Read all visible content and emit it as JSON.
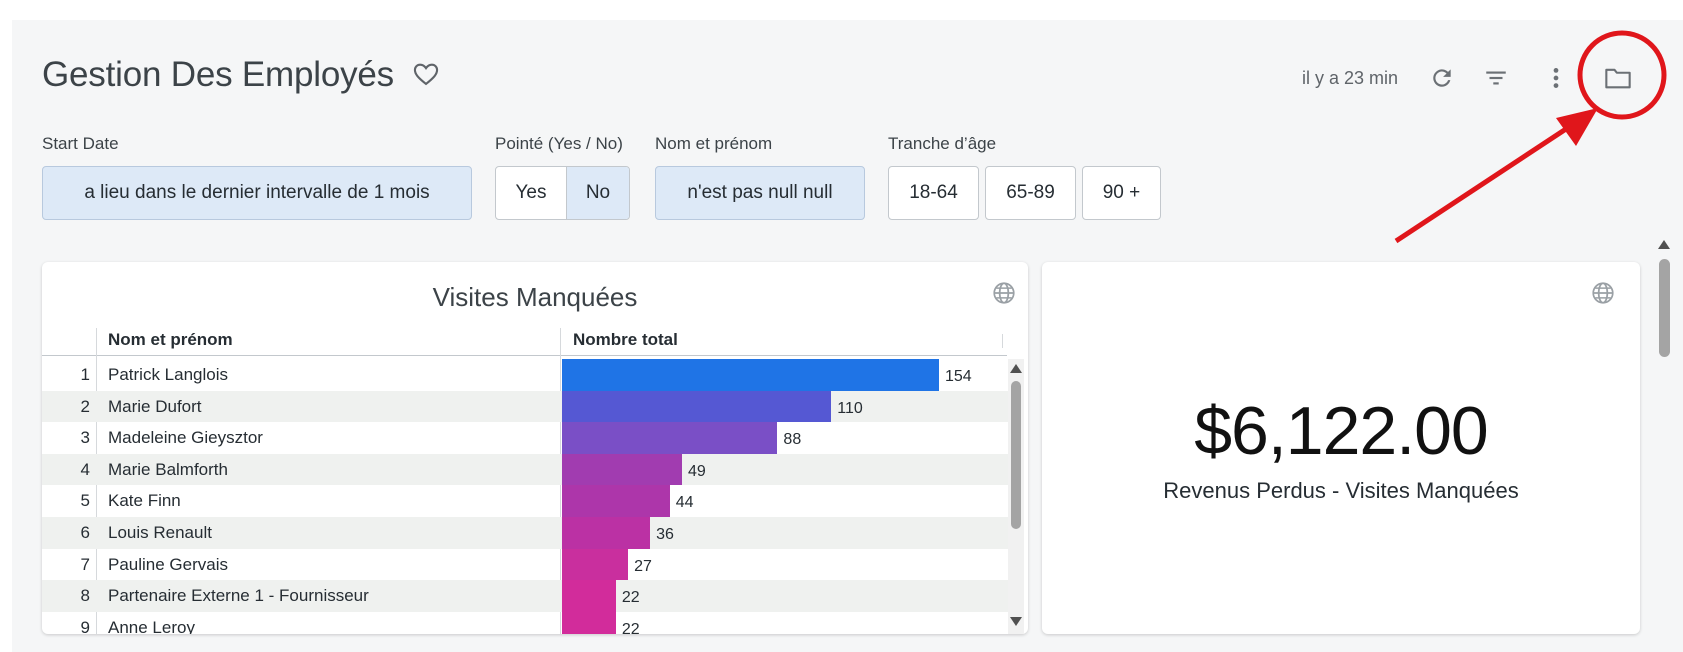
{
  "header": {
    "title": "Gestion Des Employés",
    "updated": "il y a 23 min",
    "icons": [
      "heart-icon",
      "refresh-icon",
      "filter-icon",
      "more-vert-icon",
      "folder-icon"
    ]
  },
  "filters": {
    "start_date": {
      "label": "Start Date",
      "value": "a lieu dans le dernier intervalle de 1 mois"
    },
    "pointe": {
      "label": "Pointé (Yes / No)",
      "options": [
        "Yes",
        "No"
      ],
      "selected": "No"
    },
    "nom": {
      "label": "Nom et prénom",
      "value": "n'est pas null null"
    },
    "tranche": {
      "label": "Tranche d’âge",
      "options": [
        "18-64",
        "65-89",
        "90 +"
      ]
    }
  },
  "table_card": {
    "title": "Visites Manquées",
    "columns": [
      "Nom et prénom",
      "Nombre total"
    ],
    "rows": [
      {
        "idx": "1",
        "name": "Patrick Langlois",
        "value": 154,
        "color": "#1f74e6"
      },
      {
        "idx": "2",
        "name": "Marie Dufort",
        "value": 110,
        "color": "#5558d3"
      },
      {
        "idx": "3",
        "name": "Madeleine Gieysztor",
        "value": 88,
        "color": "#7a4fc6"
      },
      {
        "idx": "4",
        "name": "Marie Balmforth",
        "value": 49,
        "color": "#a13cb0"
      },
      {
        "idx": "5",
        "name": "Kate Finn",
        "value": 44,
        "color": "#ad36aa"
      },
      {
        "idx": "6",
        "name": "Louis Renault",
        "value": 36,
        "color": "#bb31a4"
      },
      {
        "idx": "7",
        "name": "Pauline Gervais",
        "value": 27,
        "color": "#c92f9e"
      },
      {
        "idx": "8",
        "name": "Partenaire Externe 1 - Fournisseur",
        "value": 22,
        "color": "#d22c9b"
      },
      {
        "idx": "9",
        "name": "Anne Leroy",
        "value": 22,
        "color": "#d22c9b"
      }
    ],
    "max_value": 154
  },
  "kpi_card": {
    "value": "$6,122.00",
    "caption": "Revenus Perdus - Visites Manquées"
  },
  "colors": {
    "annotation": "#e0161b",
    "selected_filter": "#dde9f7"
  }
}
